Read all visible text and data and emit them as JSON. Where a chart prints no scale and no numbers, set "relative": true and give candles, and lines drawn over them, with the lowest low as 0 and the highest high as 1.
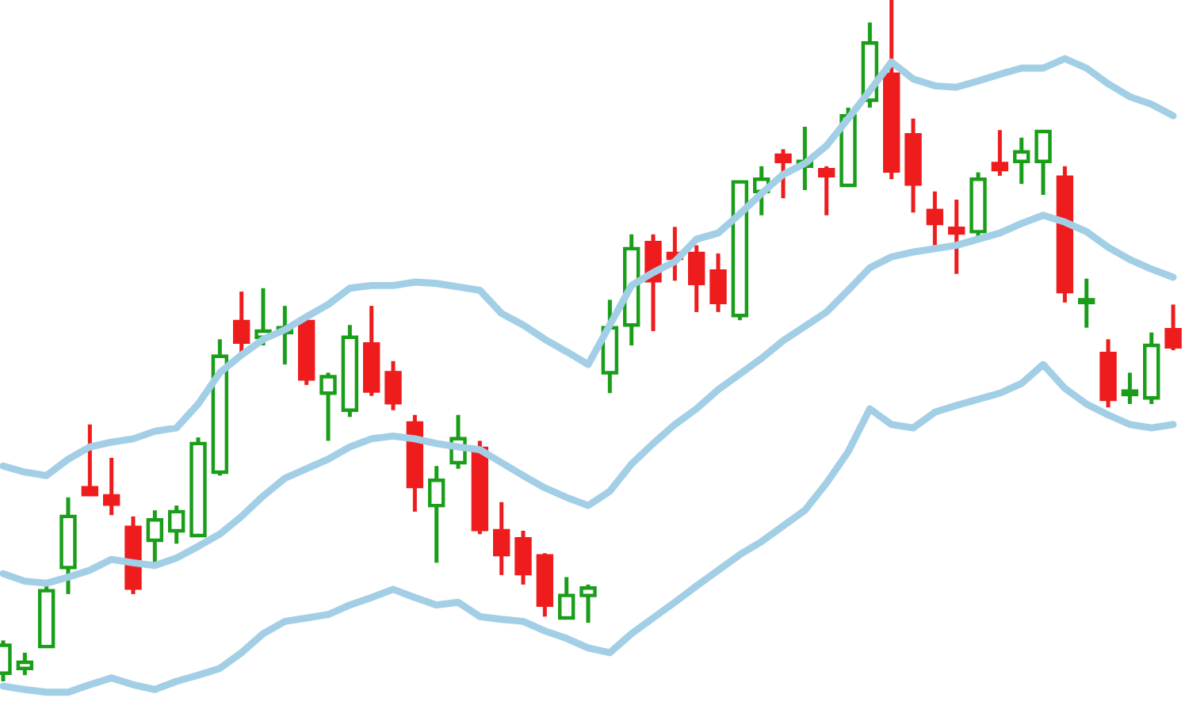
{
  "chart_data": {
    "type": "candlestick",
    "relative": true,
    "categories": [
      null,
      null,
      null,
      null,
      null,
      null,
      null,
      null,
      null,
      null,
      null,
      null,
      null,
      null,
      null,
      null,
      null,
      null,
      null,
      null,
      null,
      null,
      null,
      null,
      null,
      null,
      null,
      null,
      null,
      null,
      null,
      null,
      null,
      null,
      null,
      null,
      null,
      null,
      null,
      null,
      null,
      null,
      null,
      null,
      null,
      null,
      null,
      null,
      null,
      null,
      null,
      null,
      null,
      null,
      null
    ],
    "ohlc": [
      [
        0.012,
        0.06,
        0.0,
        0.053
      ],
      [
        0.019,
        0.042,
        0.009,
        0.028
      ],
      [
        0.051,
        0.14,
        0.049,
        0.133
      ],
      [
        0.167,
        0.27,
        0.128,
        0.242
      ],
      [
        0.284,
        0.377,
        0.272,
        0.274
      ],
      [
        0.272,
        0.328,
        0.244,
        0.26
      ],
      [
        0.226,
        0.242,
        0.128,
        0.137
      ],
      [
        0.207,
        0.251,
        0.17,
        0.237
      ],
      [
        0.221,
        0.258,
        0.202,
        0.249
      ],
      [
        0.214,
        0.358,
        0.212,
        0.349
      ],
      [
        0.307,
        0.502,
        0.302,
        0.477
      ],
      [
        0.528,
        0.572,
        0.477,
        0.498
      ],
      [
        0.505,
        0.577,
        0.493,
        0.514
      ],
      [
        0.512,
        0.551,
        0.465,
        0.519
      ],
      [
        0.528,
        0.533,
        0.435,
        0.444
      ],
      [
        0.423,
        0.453,
        0.353,
        0.447
      ],
      [
        0.398,
        0.523,
        0.388,
        0.505
      ],
      [
        0.495,
        0.551,
        0.419,
        0.426
      ],
      [
        0.453,
        0.47,
        0.398,
        0.409
      ],
      [
        0.379,
        0.391,
        0.249,
        0.286
      ],
      [
        0.258,
        0.316,
        0.174,
        0.295
      ],
      [
        0.321,
        0.391,
        0.312,
        0.356
      ],
      [
        0.342,
        0.353,
        0.216,
        0.223
      ],
      [
        0.221,
        0.263,
        0.156,
        0.186
      ],
      [
        0.209,
        0.221,
        0.142,
        0.158
      ],
      [
        0.184,
        0.188,
        0.095,
        0.112
      ],
      [
        0.093,
        0.153,
        0.091,
        0.126
      ],
      [
        0.126,
        0.142,
        0.086,
        0.137
      ],
      [
        0.453,
        0.56,
        0.423,
        0.519
      ],
      [
        0.523,
        0.656,
        0.493,
        0.635
      ],
      [
        0.644,
        0.656,
        0.514,
        0.588
      ],
      [
        0.628,
        0.667,
        0.588,
        0.621
      ],
      [
        0.628,
        0.64,
        0.542,
        0.584
      ],
      [
        0.602,
        0.628,
        0.542,
        0.556
      ],
      [
        0.537,
        0.735,
        0.53,
        0.733
      ],
      [
        0.719,
        0.756,
        0.684,
        0.737
      ],
      [
        0.772,
        0.781,
        0.709,
        0.763
      ],
      [
        0.756,
        0.814,
        0.721,
        0.763
      ],
      [
        0.751,
        0.756,
        0.684,
        0.742
      ],
      [
        0.728,
        0.842,
        0.728,
        0.83
      ],
      [
        0.853,
        0.967,
        0.842,
        0.937
      ],
      [
        0.891,
        1.0,
        0.737,
        0.749
      ],
      [
        0.802,
        0.826,
        0.688,
        0.73
      ],
      [
        0.691,
        0.719,
        0.64,
        0.672
      ],
      [
        0.665,
        0.707,
        0.598,
        0.658
      ],
      [
        0.66,
        0.747,
        0.653,
        0.737
      ],
      [
        0.76,
        0.809,
        0.742,
        0.751
      ],
      [
        0.763,
        0.798,
        0.73,
        0.777
      ],
      [
        0.763,
        0.809,
        0.714,
        0.807
      ],
      [
        0.74,
        0.756,
        0.556,
        0.572
      ],
      [
        0.556,
        0.591,
        0.519,
        0.56
      ],
      [
        0.481,
        0.502,
        0.402,
        0.414
      ],
      [
        0.421,
        0.453,
        0.407,
        0.426
      ],
      [
        0.416,
        0.512,
        0.407,
        0.493
      ],
      [
        0.516,
        0.553,
        0.486,
        0.491
      ]
    ],
    "colors": [
      "#1a9e1a",
      "#1a9e1a",
      "#1a9e1a",
      "#1a9e1a",
      "#ee1c1c",
      "#ee1c1c",
      "#ee1c1c",
      "#1a9e1a",
      "#1a9e1a",
      "#1a9e1a",
      "#1a9e1a",
      "#ee1c1c",
      "#1a9e1a",
      "#1a9e1a",
      "#ee1c1c",
      "#1a9e1a",
      "#1a9e1a",
      "#ee1c1c",
      "#ee1c1c",
      "#ee1c1c",
      "#1a9e1a",
      "#1a9e1a",
      "#ee1c1c",
      "#ee1c1c",
      "#ee1c1c",
      "#ee1c1c",
      "#1a9e1a",
      "#1a9e1a",
      "#1a9e1a",
      "#1a9e1a",
      "#ee1c1c",
      "#ee1c1c",
      "#ee1c1c",
      "#ee1c1c",
      "#1a9e1a",
      "#1a9e1a",
      "#ee1c1c",
      "#1a9e1a",
      "#ee1c1c",
      "#1a9e1a",
      "#1a9e1a",
      "#ee1c1c",
      "#ee1c1c",
      "#ee1c1c",
      "#ee1c1c",
      "#1a9e1a",
      "#ee1c1c",
      "#1a9e1a",
      "#1a9e1a",
      "#ee1c1c",
      "#1a9e1a",
      "#ee1c1c",
      "#1a9e1a",
      "#1a9e1a",
      "#ee1c1c"
    ],
    "series": [
      {
        "type": "line",
        "color": "#a3cfe6",
        "values": [
          0.316,
          0.307,
          0.302,
          0.326,
          0.344,
          0.351,
          0.356,
          0.367,
          0.372,
          0.407,
          0.453,
          0.479,
          0.502,
          0.516,
          0.535,
          0.553,
          0.577,
          0.581,
          0.581,
          0.586,
          0.584,
          0.579,
          0.574,
          0.54,
          0.523,
          0.502,
          0.484,
          0.465,
          0.523,
          0.581,
          0.6,
          0.616,
          0.649,
          0.658,
          0.686,
          0.716,
          0.744,
          0.76,
          0.786,
          0.826,
          0.867,
          0.909,
          0.884,
          0.874,
          0.872,
          0.881,
          0.891,
          0.9,
          0.9,
          0.914,
          0.9,
          0.877,
          0.858,
          0.847,
          0.83
        ]
      },
      {
        "type": "line",
        "color": "#a3cfe6",
        "values": [
          0.158,
          0.147,
          0.144,
          0.153,
          0.163,
          0.179,
          0.174,
          0.17,
          0.181,
          0.198,
          0.216,
          0.242,
          0.272,
          0.298,
          0.312,
          0.326,
          0.344,
          0.356,
          0.36,
          0.356,
          0.349,
          0.344,
          0.34,
          0.321,
          0.302,
          0.284,
          0.27,
          0.258,
          0.279,
          0.319,
          0.349,
          0.377,
          0.4,
          0.428,
          0.451,
          0.474,
          0.5,
          0.521,
          0.542,
          0.574,
          0.607,
          0.623,
          0.63,
          0.635,
          0.64,
          0.649,
          0.658,
          0.672,
          0.684,
          0.674,
          0.66,
          0.637,
          0.619,
          0.605,
          0.593
        ]
      },
      {
        "type": "line",
        "color": "#a3cfe6",
        "values": [
          -0.007,
          -0.012,
          -0.016,
          -0.016,
          -0.005,
          0.005,
          -0.005,
          -0.012,
          0,
          0.009,
          0.019,
          0.042,
          0.07,
          0.088,
          0.093,
          0.098,
          0.112,
          0.123,
          0.135,
          0.123,
          0.112,
          0.116,
          0.095,
          0.091,
          0.088,
          0.074,
          0.063,
          0.049,
          0.042,
          0.07,
          0.093,
          0.116,
          0.14,
          0.163,
          0.186,
          0.205,
          0.228,
          0.251,
          0.291,
          0.337,
          0.4,
          0.377,
          0.372,
          0.395,
          0.405,
          0.414,
          0.423,
          0.437,
          0.465,
          0.43,
          0.407,
          0.391,
          0.377,
          0.372,
          0.377
        ]
      }
    ]
  }
}
